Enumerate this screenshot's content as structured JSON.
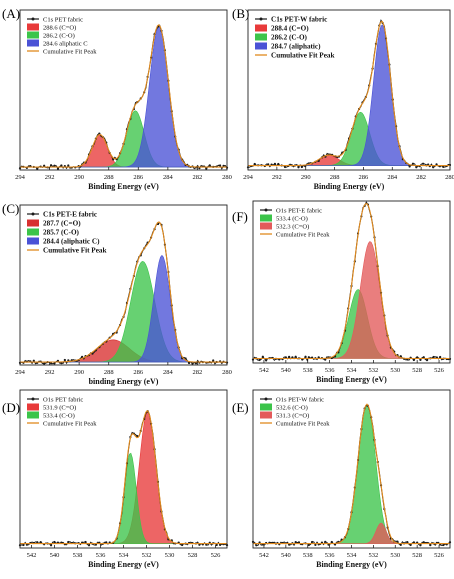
{
  "colors": {
    "frame": "#222222",
    "data": "#1a1a1a",
    "fit": "#e08a1e"
  },
  "chart_data": [
    {
      "type": "area",
      "panel_label": "(A)",
      "xlabel": "Binding Energy (eV)",
      "xlim": [
        294,
        280
      ],
      "x_reversed": true,
      "xticks": [
        294,
        292,
        290,
        288,
        286,
        284,
        282,
        280
      ],
      "ylim": [
        0,
        1.08
      ],
      "legend": {
        "position": "top-left",
        "entries": [
          {
            "label": "C1s PET fabric",
            "kind": "data"
          },
          {
            "label": "288.6 (C=O)",
            "kind": "fill",
            "color": "#e83a3a"
          },
          {
            "label": "286.2 (C-O)",
            "kind": "fill",
            "color": "#3cc44a"
          },
          {
            "label": "284.6 aliphatic C",
            "kind": "fill",
            "color": "#4a52d6"
          },
          {
            "label": "Cumulative Fit Peak",
            "kind": "fit"
          }
        ]
      },
      "background": 0.02,
      "peaks": [
        {
          "center": 288.6,
          "height": 0.22,
          "fwhm": 1.2,
          "color": "#e83a3a"
        },
        {
          "center": 286.2,
          "height": 0.38,
          "fwhm": 1.4,
          "color": "#3cc44a"
        },
        {
          "center": 284.6,
          "height": 0.95,
          "fwhm": 1.5,
          "color": "#4a52d6"
        }
      ]
    },
    {
      "type": "area",
      "panel_label": "(B)",
      "xlabel": "Binding Energy (eV)",
      "xlim": [
        294,
        280
      ],
      "x_reversed": true,
      "xticks": [
        294,
        292,
        290,
        288,
        286,
        284,
        282,
        280
      ],
      "ylim": [
        0,
        1.08
      ],
      "legend": {
        "position": "top-left",
        "entries": [
          {
            "label": "C1s  PET-W fabric",
            "kind": "data"
          },
          {
            "label": "288.4 (C=O)",
            "kind": "fill",
            "color": "#e83a3a"
          },
          {
            "label": "286.2 (C-O)",
            "kind": "fill",
            "color": "#3cc44a"
          },
          {
            "label": "284.7 (aliphatic)",
            "kind": "fill",
            "color": "#4a52d6"
          },
          {
            "label": "Cumulative Fit Peak",
            "kind": "fit"
          }
        ]
      },
      "background": 0.03,
      "peaks": [
        {
          "center": 288.4,
          "height": 0.07,
          "fwhm": 1.6,
          "color": "#e83a3a"
        },
        {
          "center": 286.2,
          "height": 0.36,
          "fwhm": 1.5,
          "color": "#3cc44a"
        },
        {
          "center": 284.7,
          "height": 0.95,
          "fwhm": 1.4,
          "color": "#4a52d6"
        }
      ]
    },
    {
      "type": "area",
      "panel_label": "(C)",
      "xlabel": "binding Energy (eV)",
      "xlim": [
        294,
        280
      ],
      "x_reversed": true,
      "xticks": [
        294,
        292,
        290,
        288,
        286,
        284,
        282,
        280
      ],
      "ylim": [
        0,
        1.08
      ],
      "legend": {
        "position": "top-left",
        "entries": [
          {
            "label": "C1s  PET-E fabric",
            "kind": "data"
          },
          {
            "label": "287.7 (C=O)",
            "kind": "fill",
            "color": "#d83030"
          },
          {
            "label": "285.7 (C-O)",
            "kind": "fill",
            "color": "#3cc44a"
          },
          {
            "label": "284.4 (aliphatic C)",
            "kind": "fill",
            "color": "#4a52d6"
          },
          {
            "label": "Cumulative Fit Peak",
            "kind": "fit"
          }
        ]
      },
      "background": 0.02,
      "peaks": [
        {
          "center": 287.7,
          "height": 0.15,
          "fwhm": 2.6,
          "color": "#d83030"
        },
        {
          "center": 285.7,
          "height": 0.68,
          "fwhm": 1.9,
          "color": "#3cc44a"
        },
        {
          "center": 284.4,
          "height": 0.72,
          "fwhm": 1.3,
          "color": "#4a52d6"
        }
      ]
    },
    {
      "type": "area",
      "panel_label": "(F)",
      "xlabel": "Binding Energy (eV)",
      "xlim": [
        543,
        525
      ],
      "x_reversed": true,
      "xticks": [
        542,
        540,
        538,
        536,
        534,
        532,
        530,
        528,
        526
      ],
      "ylim": [
        0,
        1.08
      ],
      "legend": {
        "position": "top-left",
        "entries": [
          {
            "label": "O1s PET-E fabric",
            "kind": "data"
          },
          {
            "label": "533.4 (C-O)",
            "kind": "fill",
            "color": "#3cc44a"
          },
          {
            "label": "532.3 (C=O)",
            "kind": "fill",
            "color": "#e35a5a"
          },
          {
            "label": "Cumulative Fit Peak",
            "kind": "fit"
          }
        ]
      },
      "background": 0.03,
      "peaks": [
        {
          "center": 533.4,
          "height": 0.46,
          "fwhm": 2.0,
          "color": "#3cc44a"
        },
        {
          "center": 532.3,
          "height": 0.78,
          "fwhm": 2.1,
          "color": "#e35a5a"
        }
      ]
    },
    {
      "type": "area",
      "panel_label": "(D)",
      "xlabel": "Binding Energy (eV)",
      "xlim": [
        543,
        525
      ],
      "x_reversed": true,
      "xticks": [
        542,
        540,
        538,
        536,
        534,
        532,
        530,
        528,
        526
      ],
      "ylim": [
        0,
        1.08
      ],
      "legend": {
        "position": "top-left",
        "entries": [
          {
            "label": "O1s PET fabric",
            "kind": "data"
          },
          {
            "label": "531.9 (C=O)",
            "kind": "fill",
            "color": "#e83a3a"
          },
          {
            "label": "533.4 (C-O)",
            "kind": "fill",
            "color": "#3cc44a"
          },
          {
            "label": "Cumulative Fit Peak",
            "kind": "fit"
          }
        ]
      },
      "background": 0.03,
      "peaks": [
        {
          "center": 531.9,
          "height": 0.9,
          "fwhm": 1.7,
          "color": "#e83a3a"
        },
        {
          "center": 533.4,
          "height": 0.62,
          "fwhm": 1.2,
          "color": "#3cc44a"
        }
      ]
    },
    {
      "type": "area",
      "panel_label": "(E)",
      "xlabel": "Binding Energy (eV)",
      "xlim": [
        543,
        525
      ],
      "x_reversed": true,
      "xticks": [
        542,
        540,
        538,
        536,
        534,
        532,
        530,
        528,
        526
      ],
      "ylim": [
        0,
        1.08
      ],
      "legend": {
        "position": "top-left",
        "entries": [
          {
            "label": "O1s PET-W fabric",
            "kind": "data"
          },
          {
            "label": "532.6 (C-O)",
            "kind": "fill",
            "color": "#3cc44a"
          },
          {
            "label": "531.3 (C=O)",
            "kind": "fill",
            "color": "#e35a5a"
          },
          {
            "label": "Cumulative Fit Peak",
            "kind": "fit"
          }
        ]
      },
      "background": 0.03,
      "peaks": [
        {
          "center": 532.6,
          "height": 0.95,
          "fwhm": 1.9,
          "color": "#3cc44a"
        },
        {
          "center": 531.3,
          "height": 0.14,
          "fwhm": 1.1,
          "color": "#e35a5a"
        }
      ]
    }
  ]
}
